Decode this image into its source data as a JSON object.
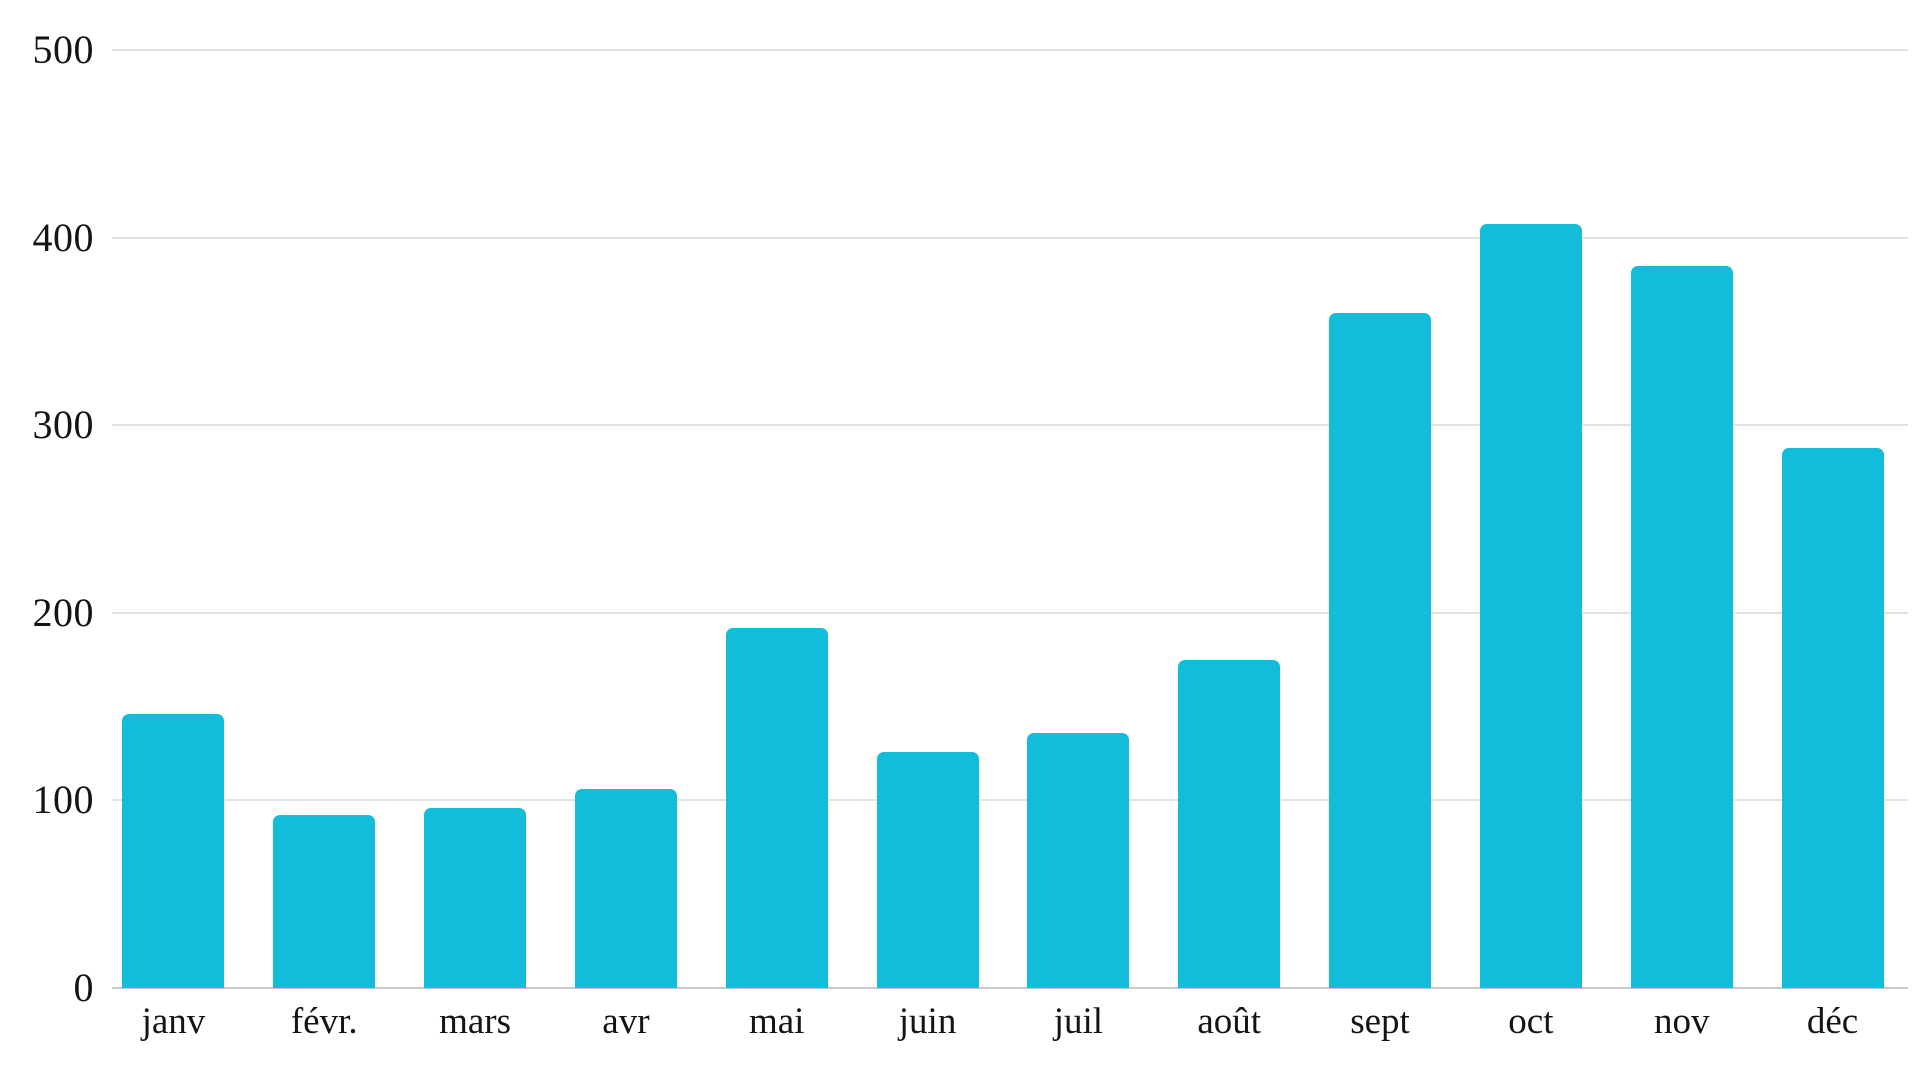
{
  "chart_data": {
    "type": "bar",
    "title": "",
    "xlabel": "",
    "ylabel": "",
    "categories": [
      "janv",
      "févr.",
      "mars",
      "avr",
      "mai",
      "juin",
      "juil",
      "août",
      "sept",
      "oct",
      "nov",
      "déc"
    ],
    "values": [
      146,
      92,
      96,
      106,
      192,
      126,
      136,
      175,
      360,
      407,
      385,
      288
    ],
    "ylim": [
      0,
      500
    ],
    "yticks": [
      "0",
      "100",
      "200",
      "300",
      "400",
      "500"
    ],
    "grid": true,
    "legend_position": "none",
    "bar_color": "#11bdd9",
    "gridline_color": "#e2e2e2",
    "baseline_color": "#c9c9c9",
    "text_color": "#141414",
    "background_color": "#ffffff"
  }
}
